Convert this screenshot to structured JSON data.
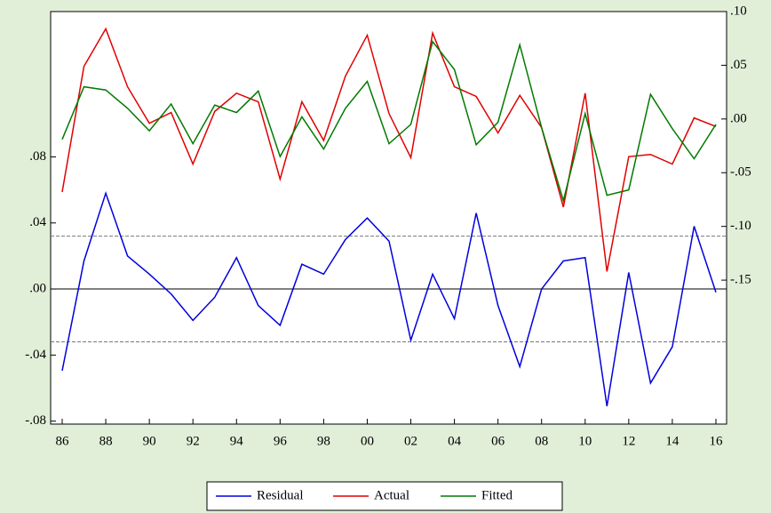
{
  "chart_data": {
    "type": "line",
    "x": [
      1986,
      1987,
      1988,
      1989,
      1990,
      1991,
      1992,
      1993,
      1994,
      1995,
      1996,
      1997,
      1998,
      1999,
      2000,
      2001,
      2002,
      2003,
      2004,
      2005,
      2006,
      2007,
      2008,
      2009,
      2010,
      2011,
      2012,
      2013,
      2014,
      2015,
      2016
    ],
    "xlim": [
      1985.47,
      2016.49
    ],
    "xticks": [
      {
        "value": 1986,
        "label": "86"
      },
      {
        "value": 1988,
        "label": "88"
      },
      {
        "value": 1990,
        "label": "90"
      },
      {
        "value": 1992,
        "label": "92"
      },
      {
        "value": 1994,
        "label": "94"
      },
      {
        "value": 1996,
        "label": "96"
      },
      {
        "value": 1998,
        "label": "98"
      },
      {
        "value": 2000,
        "label": "00"
      },
      {
        "value": 2002,
        "label": "02"
      },
      {
        "value": 2004,
        "label": "04"
      },
      {
        "value": 2006,
        "label": "06"
      },
      {
        "value": 2008,
        "label": "08"
      },
      {
        "value": 2010,
        "label": "10"
      },
      {
        "value": 2012,
        "label": "12"
      },
      {
        "value": 2014,
        "label": "14"
      },
      {
        "value": 2016,
        "label": "16"
      }
    ],
    "ylim": [
      -0.0818,
      0.168
    ],
    "yticks": [
      {
        "value": -0.08,
        "label": "-.08"
      },
      {
        "value": -0.04,
        "label": "-.04"
      },
      {
        "value": 0,
        "label": ".00"
      },
      {
        "value": 0.04,
        "label": ".04"
      },
      {
        "value": 0.08,
        "label": ".08"
      }
    ],
    "y2lim": [
      -0.284,
      0.1
    ],
    "y2ticks": [
      {
        "value": -0.15,
        "label": "-.15"
      },
      {
        "value": -0.1,
        "label": "-.10"
      },
      {
        "value": -0.05,
        "label": "-.05"
      },
      {
        "value": 0,
        "label": ".00"
      },
      {
        "value": 0.05,
        "label": ".05"
      },
      {
        "value": 0.1,
        "label": ".10"
      }
    ],
    "reference_lines": [
      0.032,
      -0.032
    ],
    "series": [
      {
        "name": "Residual",
        "color": "#0000dd",
        "values": [
          -0.0495,
          0.017,
          0.058,
          0.02,
          0.009,
          -0.003,
          -0.019,
          -0.005,
          0.019,
          -0.01,
          -0.022,
          0.015,
          0.009,
          0.03,
          0.043,
          0.029,
          -0.031,
          0.009,
          -0.018,
          0.046,
          -0.01,
          -0.047,
          0.0,
          0.017,
          0.019,
          -0.071,
          0.01,
          -0.057,
          -0.035,
          0.038,
          -0.002
        ]
      },
      {
        "name": "Actual",
        "color": "#e00000",
        "axis": "y2",
        "values": [
          -0.068,
          0.049,
          0.084,
          0.03,
          -0.004,
          0.006,
          -0.042,
          0.007,
          0.024,
          0.016,
          -0.056,
          0.016,
          -0.02,
          0.04,
          0.078,
          0.005,
          -0.036,
          0.08,
          0.03,
          0.021,
          -0.013,
          0.022,
          -0.008,
          -0.082,
          0.024,
          -0.142,
          -0.035,
          -0.033,
          -0.042,
          0.001,
          -0.007
        ]
      },
      {
        "name": "Fitted",
        "color": "#007a00",
        "axis": "y2",
        "values": [
          -0.019,
          0.03,
          0.027,
          0.01,
          -0.011,
          0.014,
          -0.023,
          0.013,
          0.006,
          0.026,
          -0.035,
          0.002,
          -0.028,
          0.01,
          0.035,
          -0.023,
          -0.005,
          0.072,
          0.046,
          -0.024,
          -0.003,
          0.069,
          -0.008,
          -0.076,
          0.005,
          -0.071,
          -0.066,
          0.023,
          -0.009,
          -0.037,
          -0.005
        ]
      }
    ]
  }
}
